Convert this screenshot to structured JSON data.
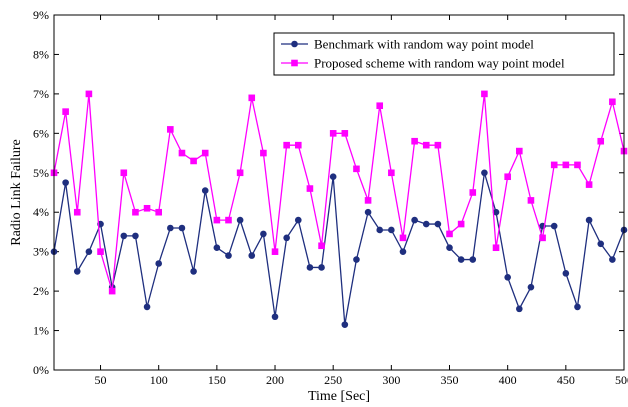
{
  "chart_data": {
    "type": "line",
    "title": "",
    "xlabel": "Time [Sec]",
    "ylabel": "Radio Link Failure",
    "xlim": [
      10,
      500
    ],
    "ylim": [
      0,
      9
    ],
    "xticks": [
      50,
      100,
      150,
      200,
      250,
      300,
      350,
      400,
      450,
      500
    ],
    "xtick_labels": [
      "50",
      "100",
      "150",
      "200",
      "250",
      "300",
      "350",
      "400",
      "450",
      "500"
    ],
    "yticks": [
      0,
      1,
      2,
      3,
      4,
      5,
      6,
      7,
      8,
      9
    ],
    "ytick_labels": [
      "0%",
      "1%",
      "2%",
      "3%",
      "4%",
      "5%",
      "6%",
      "7%",
      "8%",
      "9%"
    ],
    "grid": false,
    "legend_position": "top-right",
    "x": [
      10,
      20,
      30,
      40,
      50,
      60,
      70,
      80,
      90,
      100,
      110,
      120,
      130,
      140,
      150,
      160,
      170,
      180,
      190,
      200,
      210,
      220,
      230,
      240,
      250,
      260,
      270,
      280,
      290,
      300,
      310,
      320,
      330,
      340,
      350,
      360,
      370,
      380,
      390,
      400,
      410,
      420,
      430,
      440,
      450,
      460,
      470,
      480,
      490,
      500
    ],
    "series": [
      {
        "name": "Benchmark with random way point model",
        "color": "#1f2f7f",
        "marker": "circle",
        "values": [
          3.0,
          4.75,
          2.5,
          3.0,
          3.7,
          2.1,
          3.4,
          3.4,
          1.6,
          2.7,
          3.6,
          3.6,
          2.5,
          4.55,
          3.1,
          2.9,
          3.8,
          2.9,
          3.45,
          1.35,
          3.35,
          3.8,
          2.6,
          2.6,
          4.9,
          1.15,
          2.8,
          4.0,
          3.55,
          3.55,
          3.0,
          3.8,
          3.7,
          3.7,
          3.1,
          2.8,
          2.8,
          5.0,
          4.0,
          2.35,
          1.55,
          2.1,
          3.65,
          3.65,
          2.45,
          1.6,
          3.8,
          3.2,
          2.8,
          3.55
        ]
      },
      {
        "name": "Proposed scheme with random way point model",
        "color": "#ff00ff",
        "marker": "square",
        "values": [
          5.0,
          6.55,
          4.0,
          7.0,
          3.0,
          2.0,
          5.0,
          4.0,
          4.1,
          4.0,
          6.1,
          5.5,
          5.3,
          5.5,
          3.8,
          3.8,
          5.0,
          6.9,
          5.5,
          3.0,
          5.7,
          5.7,
          4.6,
          3.15,
          6.0,
          6.0,
          5.1,
          4.3,
          6.7,
          5.0,
          3.35,
          5.8,
          5.7,
          5.7,
          3.45,
          3.7,
          4.5,
          7.0,
          3.1,
          4.9,
          5.55,
          4.3,
          3.35,
          5.2,
          5.2,
          5.2,
          4.7,
          5.8,
          6.8,
          5.55
        ]
      }
    ]
  }
}
